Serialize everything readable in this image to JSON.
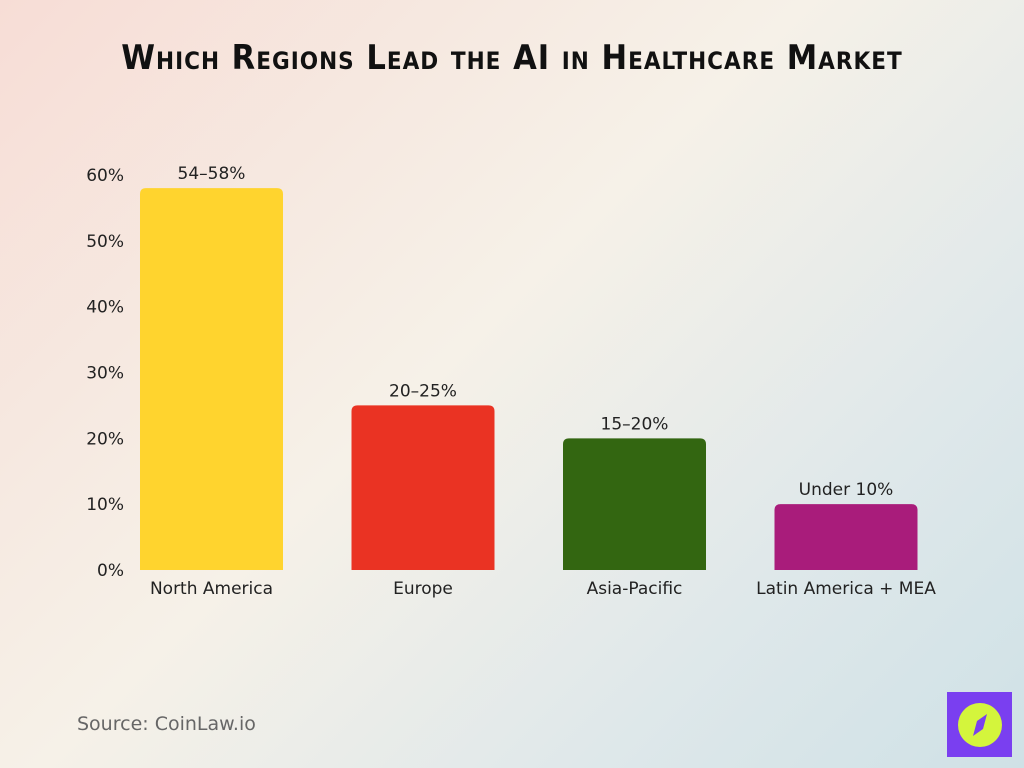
{
  "title": "Which Regions Lead the AI in Healthcare Market",
  "source": "Source: CoinLaw.io",
  "chart_data": {
    "type": "bar",
    "title": "Which Regions Lead the AI in Healthcare Market",
    "categories": [
      "North America",
      "Europe",
      "Asia-Pacific",
      "Latin America + MEA"
    ],
    "values": [
      58,
      25,
      20,
      10
    ],
    "data_labels": [
      "54–58%",
      "20–25%",
      "15–20%",
      "Under 10%"
    ],
    "colors": [
      "#ffd42e",
      "#ea3323",
      "#336611",
      "#a91c7b"
    ],
    "ylim": [
      0,
      60
    ],
    "yticks": [
      "0%",
      "10%",
      "20%",
      "30%",
      "40%",
      "50%",
      "60%"
    ],
    "grid": false,
    "xlabel": "",
    "ylabel": ""
  },
  "logo": {
    "colors": {
      "background": "#7a3ff0",
      "circle": "#d4f53c"
    },
    "icon": "compass-icon"
  }
}
